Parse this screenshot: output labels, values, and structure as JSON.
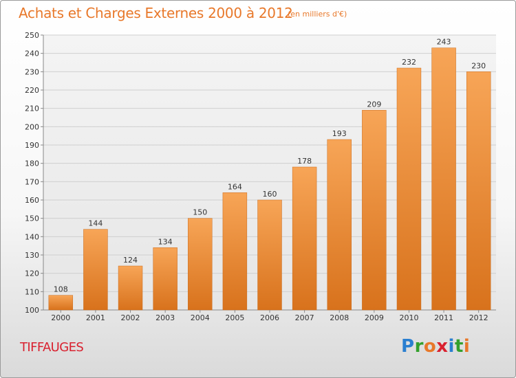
{
  "header": {
    "title": "Achats et Charges Externes 2000 à 2012",
    "subtitle": "(en milliers d'€)"
  },
  "footer": {
    "commune": "TIFFAUGES",
    "logo_letters": [
      "P",
      "r",
      "o",
      "x",
      "i",
      "t",
      "i"
    ],
    "logo_colors": [
      "#2a7fd0",
      "#33a02c",
      "#e8782a",
      "#d9212f",
      "#2a7fd0",
      "#33a02c",
      "#e8782a"
    ]
  },
  "colors": {
    "bar_top": "#f7a557",
    "bar_bottom": "#d8721c",
    "title": "#e8782a",
    "commune": "#d9212f",
    "grid": "#cfcfcf",
    "axis_text": "#333333"
  },
  "chart_data": {
    "type": "bar",
    "title": "Achats et Charges Externes 2000 à 2012",
    "subtitle": "(en milliers d'€)",
    "xlabel": "",
    "ylabel": "",
    "categories": [
      "2000",
      "2001",
      "2002",
      "2003",
      "2004",
      "2005",
      "2006",
      "2007",
      "2008",
      "2009",
      "2010",
      "2011",
      "2012"
    ],
    "values": [
      108,
      144,
      124,
      134,
      150,
      164,
      160,
      178,
      193,
      209,
      232,
      243,
      230
    ],
    "data_labels": [
      "108",
      "144",
      "124",
      "134",
      "150",
      "164",
      "160",
      "178",
      "193",
      "209",
      "232",
      "243",
      "230"
    ],
    "ylim": [
      100,
      250
    ],
    "yticks": [
      100,
      110,
      120,
      130,
      140,
      150,
      160,
      170,
      180,
      190,
      200,
      210,
      220,
      230,
      240,
      250
    ],
    "ytick_labels": [
      "100",
      "110",
      "120",
      "130",
      "140",
      "150",
      "160",
      "170",
      "180",
      "190",
      "200",
      "210",
      "220",
      "230",
      "240",
      "250"
    ],
    "grid": true
  }
}
